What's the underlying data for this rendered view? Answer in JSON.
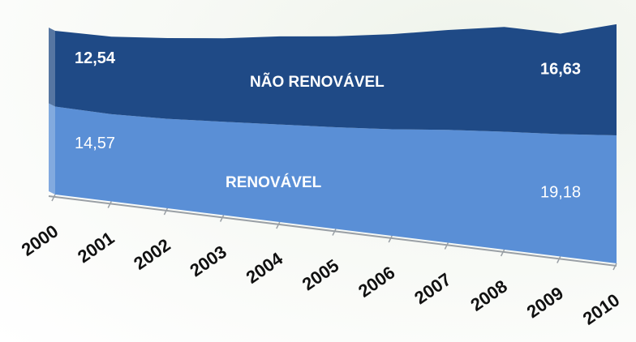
{
  "chart_data": {
    "type": "area",
    "stacked": true,
    "categories": [
      "2000",
      "2001",
      "2002",
      "2003",
      "2004",
      "2005",
      "2006",
      "2007",
      "2008",
      "2009",
      "2010"
    ],
    "series": [
      {
        "name": "RENOVÁVEL",
        "color": "#5a8fd6",
        "values": [
          14.57,
          14.3,
          14.5,
          15.0,
          15.5,
          16.0,
          16.6,
          17.4,
          18.0,
          18.5,
          19.18
        ],
        "value_labels": [
          "14,57",
          null,
          null,
          null,
          null,
          null,
          null,
          null,
          null,
          null,
          "19,18"
        ]
      },
      {
        "name": "NÃO RENOVÁVEL",
        "color": "#1f4a86",
        "values": [
          12.54,
          12.7,
          13.1,
          13.4,
          14.0,
          14.3,
          14.8,
          15.4,
          16.0,
          15.2,
          16.63
        ],
        "value_labels": [
          "12,54",
          null,
          null,
          null,
          null,
          null,
          null,
          null,
          null,
          null,
          "16,63"
        ]
      }
    ]
  }
}
